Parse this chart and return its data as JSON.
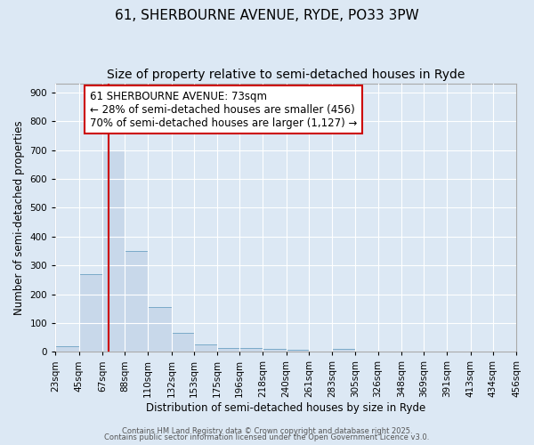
{
  "title_line1": "61, SHERBOURNE AVENUE, RYDE, PO33 3PW",
  "title_line2": "Size of property relative to semi-detached houses in Ryde",
  "xlabel": "Distribution of semi-detached houses by size in Ryde",
  "ylabel": "Number of semi-detached properties",
  "bin_edges": [
    23,
    45,
    67,
    88,
    110,
    132,
    153,
    175,
    196,
    218,
    240,
    261,
    283,
    305,
    326,
    348,
    369,
    391,
    413,
    434,
    456
  ],
  "bar_heights": [
    20,
    270,
    700,
    350,
    155,
    65,
    25,
    12,
    12,
    10,
    8,
    0,
    10,
    0,
    0,
    0,
    0,
    0,
    0,
    0
  ],
  "bar_color": "#c8d8ea",
  "bar_edge_color": "#7aaac8",
  "background_color": "#dce8f4",
  "grid_color": "#ffffff",
  "red_line_x": 73,
  "annotation_title": "61 SHERBOURNE AVENUE: 73sqm",
  "annotation_line1": "← 28% of semi-detached houses are smaller (456)",
  "annotation_line2": "70% of semi-detached houses are larger (1,127) →",
  "annotation_box_facecolor": "#ffffff",
  "annotation_border_color": "#cc0000",
  "ylim": [
    0,
    930
  ],
  "yticks": [
    0,
    100,
    200,
    300,
    400,
    500,
    600,
    700,
    800,
    900
  ],
  "title_fontsize": 11,
  "subtitle_fontsize": 10,
  "axis_label_fontsize": 8.5,
  "tick_fontsize": 7.5,
  "annotation_fontsize": 8.5,
  "footer_fontsize": 6.0
}
